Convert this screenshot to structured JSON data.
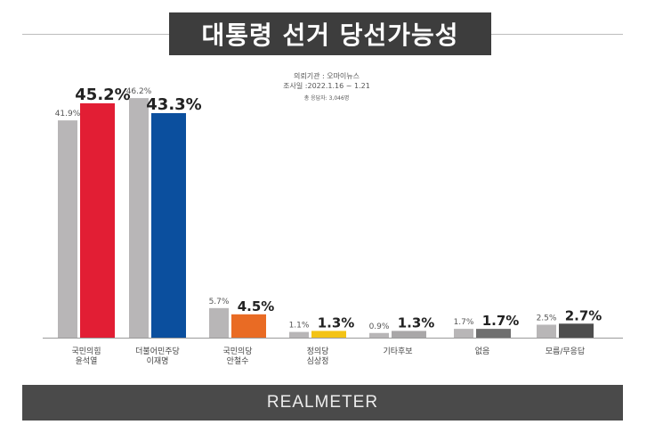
{
  "title": "대통령 선거 당선가능성",
  "meta": {
    "line1": "의뢰기관 : 오마이뉴스",
    "line2": "조사일 :2022.1.16 ~ 1.21",
    "line3": "총 응답자: 3,046명"
  },
  "footer": {
    "brand": "REALMETER"
  },
  "chart_data": {
    "type": "bar",
    "categories": [
      [
        "국민의힘",
        "윤석열"
      ],
      [
        "더불어민주당",
        "이재명"
      ],
      [
        "국민의당",
        "안철수"
      ],
      [
        "정의당",
        "심상정"
      ],
      [
        "기타후보"
      ],
      [
        "없음"
      ],
      [
        "모름/무응답"
      ]
    ],
    "series": [
      {
        "values": [
          41.9,
          46.2,
          5.7,
          1.1,
          0.9,
          1.7,
          2.5
        ],
        "labels": [
          "41.9%",
          "46.2%",
          "5.7%",
          "1.1%",
          "0.9%",
          "1.7%",
          "2.5%"
        ]
      },
      {
        "values": [
          45.2,
          43.3,
          4.5,
          1.3,
          1.3,
          1.7,
          2.7
        ],
        "labels": [
          "45.2%",
          "43.3%",
          "4.5%",
          "1.3%",
          "1.3%",
          "1.7%",
          "2.7%"
        ]
      }
    ],
    "colors": {
      "previous": "#b8b6b7",
      "current": [
        "#e21e34",
        "#0b4f9e",
        "#e96b24",
        "#f3c316",
        "#a9a7a8",
        "#6f6f6f",
        "#4d4d4d"
      ]
    },
    "ylim": [
      0,
      50
    ]
  }
}
